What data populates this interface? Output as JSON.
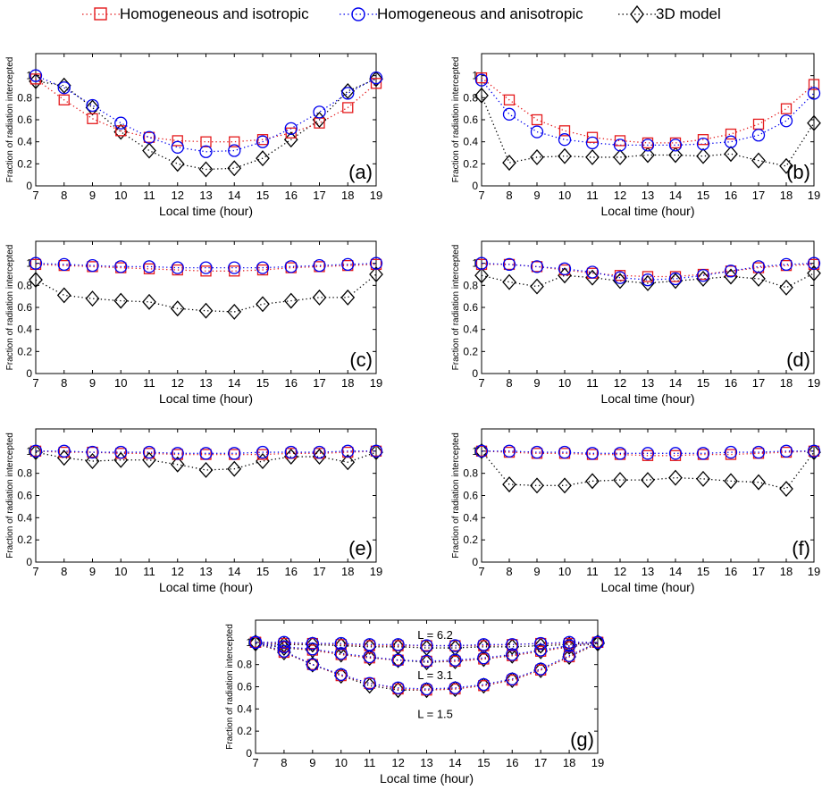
{
  "legend": {
    "items": [
      {
        "label": "Homogeneous and isotropic",
        "marker": "square",
        "color": "#e41a1c"
      },
      {
        "label": "Homogeneous and anisotropic",
        "marker": "circle",
        "color": "#0000ee"
      },
      {
        "label": "3D model",
        "marker": "diamond",
        "color": "#000000"
      }
    ]
  },
  "chart_data": [
    {
      "type": "line",
      "panel_label": "(a)",
      "xlabel": "Local time (hour)",
      "ylabel": "Fraction of radiation intercepted",
      "x": [
        7,
        8,
        9,
        10,
        11,
        12,
        13,
        14,
        15,
        16,
        17,
        18,
        19
      ],
      "xlim": [
        7,
        19
      ],
      "ylim": [
        0,
        1.2
      ],
      "yticks": [
        0,
        0.2,
        0.4,
        0.6,
        0.8,
        1
      ],
      "series": [
        {
          "name": "Homogeneous and isotropic",
          "values": [
            0.97,
            0.78,
            0.61,
            0.5,
            0.44,
            0.41,
            0.4,
            0.4,
            0.42,
            0.48,
            0.57,
            0.71,
            0.93
          ]
        },
        {
          "name": "Homogeneous and anisotropic",
          "values": [
            1.0,
            0.89,
            0.73,
            0.57,
            0.44,
            0.35,
            0.31,
            0.32,
            0.4,
            0.52,
            0.67,
            0.84,
            0.98
          ]
        },
        {
          "name": "3D model",
          "values": [
            0.95,
            0.91,
            0.71,
            0.49,
            0.32,
            0.2,
            0.15,
            0.16,
            0.25,
            0.42,
            0.6,
            0.86,
            0.97
          ]
        }
      ]
    },
    {
      "type": "line",
      "panel_label": "(b)",
      "xlabel": "Local time (hour)",
      "ylabel": "Fraction of radiation intercepted",
      "x": [
        7,
        8,
        9,
        10,
        11,
        12,
        13,
        14,
        15,
        16,
        17,
        18,
        19
      ],
      "xlim": [
        7,
        19
      ],
      "ylim": [
        0,
        1.2
      ],
      "yticks": [
        0,
        0.2,
        0.4,
        0.6,
        0.8,
        1
      ],
      "series": [
        {
          "name": "Homogeneous and isotropic",
          "values": [
            0.98,
            0.78,
            0.6,
            0.5,
            0.44,
            0.41,
            0.39,
            0.39,
            0.42,
            0.47,
            0.56,
            0.7,
            0.92
          ]
        },
        {
          "name": "Homogeneous and anisotropic",
          "values": [
            0.96,
            0.65,
            0.49,
            0.42,
            0.39,
            0.37,
            0.37,
            0.37,
            0.38,
            0.4,
            0.46,
            0.59,
            0.84
          ]
        },
        {
          "name": "3D model",
          "values": [
            0.82,
            0.21,
            0.26,
            0.27,
            0.26,
            0.26,
            0.28,
            0.28,
            0.27,
            0.29,
            0.23,
            0.18,
            0.57
          ]
        }
      ]
    },
    {
      "type": "line",
      "panel_label": "(c)",
      "xlabel": "Local time (hour)",
      "ylabel": "Fraction of radiation intercepted",
      "x": [
        7,
        8,
        9,
        10,
        11,
        12,
        13,
        14,
        15,
        16,
        17,
        18,
        19
      ],
      "xlim": [
        7,
        19
      ],
      "ylim": [
        0,
        1.2
      ],
      "yticks": [
        0,
        0.2,
        0.4,
        0.6,
        0.8,
        1
      ],
      "series": [
        {
          "name": "Homogeneous and isotropic",
          "values": [
            0.99,
            0.98,
            0.97,
            0.96,
            0.95,
            0.94,
            0.93,
            0.93,
            0.94,
            0.96,
            0.97,
            0.98,
            0.99
          ]
        },
        {
          "name": "Homogeneous and anisotropic",
          "values": [
            1.0,
            0.99,
            0.98,
            0.97,
            0.97,
            0.96,
            0.96,
            0.96,
            0.96,
            0.97,
            0.98,
            0.99,
            1.0
          ]
        },
        {
          "name": "3D model",
          "values": [
            0.85,
            0.71,
            0.68,
            0.66,
            0.65,
            0.59,
            0.57,
            0.56,
            0.63,
            0.66,
            0.69,
            0.69,
            0.9
          ]
        }
      ]
    },
    {
      "type": "line",
      "panel_label": "(d)",
      "xlabel": "Local time (hour)",
      "ylabel": "Fraction of radiation intercepted",
      "x": [
        7,
        8,
        9,
        10,
        11,
        12,
        13,
        14,
        15,
        16,
        17,
        18,
        19
      ],
      "xlim": [
        7,
        19
      ],
      "ylim": [
        0,
        1.2
      ],
      "yticks": [
        0,
        0.2,
        0.4,
        0.6,
        0.8,
        1
      ],
      "series": [
        {
          "name": "Homogeneous and isotropic",
          "values": [
            0.99,
            0.99,
            0.97,
            0.94,
            0.91,
            0.89,
            0.88,
            0.88,
            0.9,
            0.93,
            0.96,
            0.98,
            0.99
          ]
        },
        {
          "name": "Homogeneous and anisotropic",
          "values": [
            1.0,
            0.99,
            0.97,
            0.95,
            0.92,
            0.87,
            0.85,
            0.86,
            0.89,
            0.93,
            0.97,
            0.99,
            1.0
          ]
        },
        {
          "name": "3D model",
          "values": [
            0.89,
            0.83,
            0.79,
            0.89,
            0.87,
            0.84,
            0.82,
            0.84,
            0.86,
            0.88,
            0.86,
            0.78,
            0.91
          ]
        }
      ]
    },
    {
      "type": "line",
      "panel_label": "(e)",
      "xlabel": "Local time (hour)",
      "ylabel": "Fraction of radiation intercepted",
      "x": [
        7,
        8,
        9,
        10,
        11,
        12,
        13,
        14,
        15,
        16,
        17,
        18,
        19
      ],
      "xlim": [
        7,
        19
      ],
      "ylim": [
        0,
        1.2
      ],
      "yticks": [
        0,
        0.2,
        0.4,
        0.6,
        0.8,
        1
      ],
      "series": [
        {
          "name": "Homogeneous and isotropic",
          "values": [
            1.0,
            0.99,
            0.99,
            0.98,
            0.98,
            0.97,
            0.97,
            0.97,
            0.97,
            0.98,
            0.98,
            0.99,
            1.0
          ]
        },
        {
          "name": "Homogeneous and anisotropic",
          "values": [
            1.0,
            1.0,
            0.99,
            0.99,
            0.99,
            0.98,
            0.98,
            0.98,
            0.99,
            0.99,
            0.99,
            1.0,
            1.0
          ]
        },
        {
          "name": "3D model",
          "values": [
            0.99,
            0.94,
            0.91,
            0.92,
            0.92,
            0.88,
            0.83,
            0.84,
            0.91,
            0.95,
            0.95,
            0.9,
            0.99
          ]
        }
      ]
    },
    {
      "type": "line",
      "panel_label": "(f)",
      "xlabel": "Local time (hour)",
      "ylabel": "Fraction of radiation intercepted",
      "x": [
        7,
        8,
        9,
        10,
        11,
        12,
        13,
        14,
        15,
        16,
        17,
        18,
        19
      ],
      "xlim": [
        7,
        19
      ],
      "ylim": [
        0,
        1.2
      ],
      "yticks": [
        0,
        0.2,
        0.4,
        0.6,
        0.8,
        1
      ],
      "series": [
        {
          "name": "Homogeneous and isotropic",
          "values": [
            1.0,
            0.99,
            0.98,
            0.98,
            0.97,
            0.97,
            0.96,
            0.96,
            0.97,
            0.97,
            0.98,
            0.99,
            1.0
          ]
        },
        {
          "name": "Homogeneous and anisotropic",
          "values": [
            1.0,
            1.0,
            0.99,
            0.99,
            0.98,
            0.98,
            0.98,
            0.98,
            0.98,
            0.99,
            0.99,
            1.0,
            1.0
          ]
        },
        {
          "name": "3D model",
          "values": [
            1.0,
            0.7,
            0.69,
            0.69,
            0.73,
            0.74,
            0.74,
            0.76,
            0.75,
            0.73,
            0.72,
            0.66,
            0.99
          ]
        }
      ]
    },
    {
      "type": "line",
      "panel_label": "(g)",
      "xlabel": "Local time (hour)",
      "ylabel": "Fraction of radiation intercepted",
      "x": [
        7,
        8,
        9,
        10,
        11,
        12,
        13,
        14,
        15,
        16,
        17,
        18,
        19
      ],
      "xlim": [
        7,
        19
      ],
      "ylim": [
        0,
        1.2
      ],
      "yticks": [
        0,
        0.2,
        0.4,
        0.6,
        0.8,
        1
      ],
      "annotations": [
        {
          "text": "L = 6.2",
          "x": 13.3,
          "y": 1.07
        },
        {
          "text": "L = 3.1",
          "x": 13.3,
          "y": 0.71
        },
        {
          "text": "L = 1.5",
          "x": 13.3,
          "y": 0.36
        }
      ],
      "series": [
        {
          "name": "Homogeneous and isotropic",
          "group": "L = 6.2",
          "values": [
            1.0,
            0.99,
            0.99,
            0.98,
            0.97,
            0.97,
            0.97,
            0.97,
            0.97,
            0.98,
            0.99,
            0.99,
            1.0
          ]
        },
        {
          "name": "Homogeneous and anisotropic",
          "group": "L = 6.2",
          "values": [
            1.0,
            1.0,
            0.99,
            0.99,
            0.98,
            0.98,
            0.97,
            0.97,
            0.98,
            0.98,
            0.99,
            1.0,
            1.0
          ]
        },
        {
          "name": "3D model",
          "group": "L = 6.2",
          "values": [
            1.0,
            0.98,
            0.98,
            0.97,
            0.96,
            0.96,
            0.95,
            0.95,
            0.96,
            0.96,
            0.97,
            0.98,
            1.0
          ]
        },
        {
          "name": "Homogeneous and isotropic",
          "group": "L = 3.1",
          "values": [
            1.0,
            0.96,
            0.93,
            0.89,
            0.86,
            0.84,
            0.83,
            0.83,
            0.85,
            0.88,
            0.92,
            0.96,
            1.0
          ]
        },
        {
          "name": "Homogeneous and anisotropic",
          "group": "L = 3.1",
          "values": [
            1.0,
            0.96,
            0.94,
            0.9,
            0.87,
            0.84,
            0.83,
            0.84,
            0.86,
            0.89,
            0.93,
            0.97,
            1.0
          ]
        },
        {
          "name": "3D model",
          "group": "L = 3.1",
          "values": [
            0.99,
            0.95,
            0.93,
            0.89,
            0.86,
            0.84,
            0.82,
            0.83,
            0.85,
            0.88,
            0.92,
            0.96,
            0.99
          ]
        },
        {
          "name": "Homogeneous and isotropic",
          "group": "L = 1.5",
          "values": [
            1.0,
            0.91,
            0.8,
            0.7,
            0.63,
            0.58,
            0.57,
            0.58,
            0.61,
            0.66,
            0.75,
            0.87,
            1.0
          ]
        },
        {
          "name": "Homogeneous and anisotropic",
          "group": "L = 1.5",
          "values": [
            1.0,
            0.92,
            0.8,
            0.71,
            0.63,
            0.59,
            0.58,
            0.59,
            0.62,
            0.67,
            0.76,
            0.88,
            1.0
          ]
        },
        {
          "name": "3D model",
          "group": "L = 1.5",
          "values": [
            0.99,
            0.91,
            0.8,
            0.7,
            0.61,
            0.57,
            0.57,
            0.58,
            0.61,
            0.66,
            0.75,
            0.87,
            0.99
          ]
        }
      ]
    }
  ]
}
